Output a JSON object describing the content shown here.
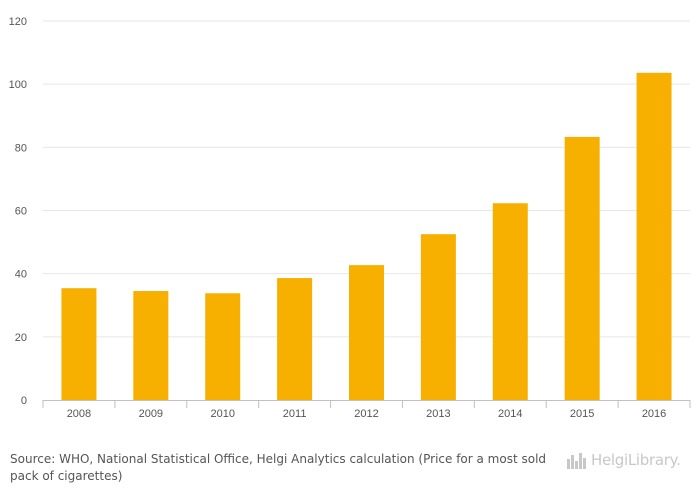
{
  "chart_data": {
    "type": "bar",
    "categories": [
      "2008",
      "2009",
      "2010",
      "2011",
      "2012",
      "2013",
      "2014",
      "2015",
      "2016"
    ],
    "values": [
      35.4,
      34.5,
      33.8,
      38.6,
      42.7,
      52.5,
      62.3,
      83.3,
      103.6
    ],
    "yticks": [
      0,
      20,
      40,
      60,
      80,
      100,
      120
    ],
    "ylim": [
      0,
      120
    ],
    "grid": true,
    "bar_color": "#f7b000",
    "title": "",
    "xlabel": "",
    "ylabel": ""
  },
  "footer": {
    "source_prefix": "Source:",
    "source_text": "WHO, National Statistical Office, Helgi Analytics calculation (Price for a most sold pack of cigarettes)",
    "logo_text": "HelgiLibrary.",
    "logo_icon": "skyline-logo-icon"
  }
}
